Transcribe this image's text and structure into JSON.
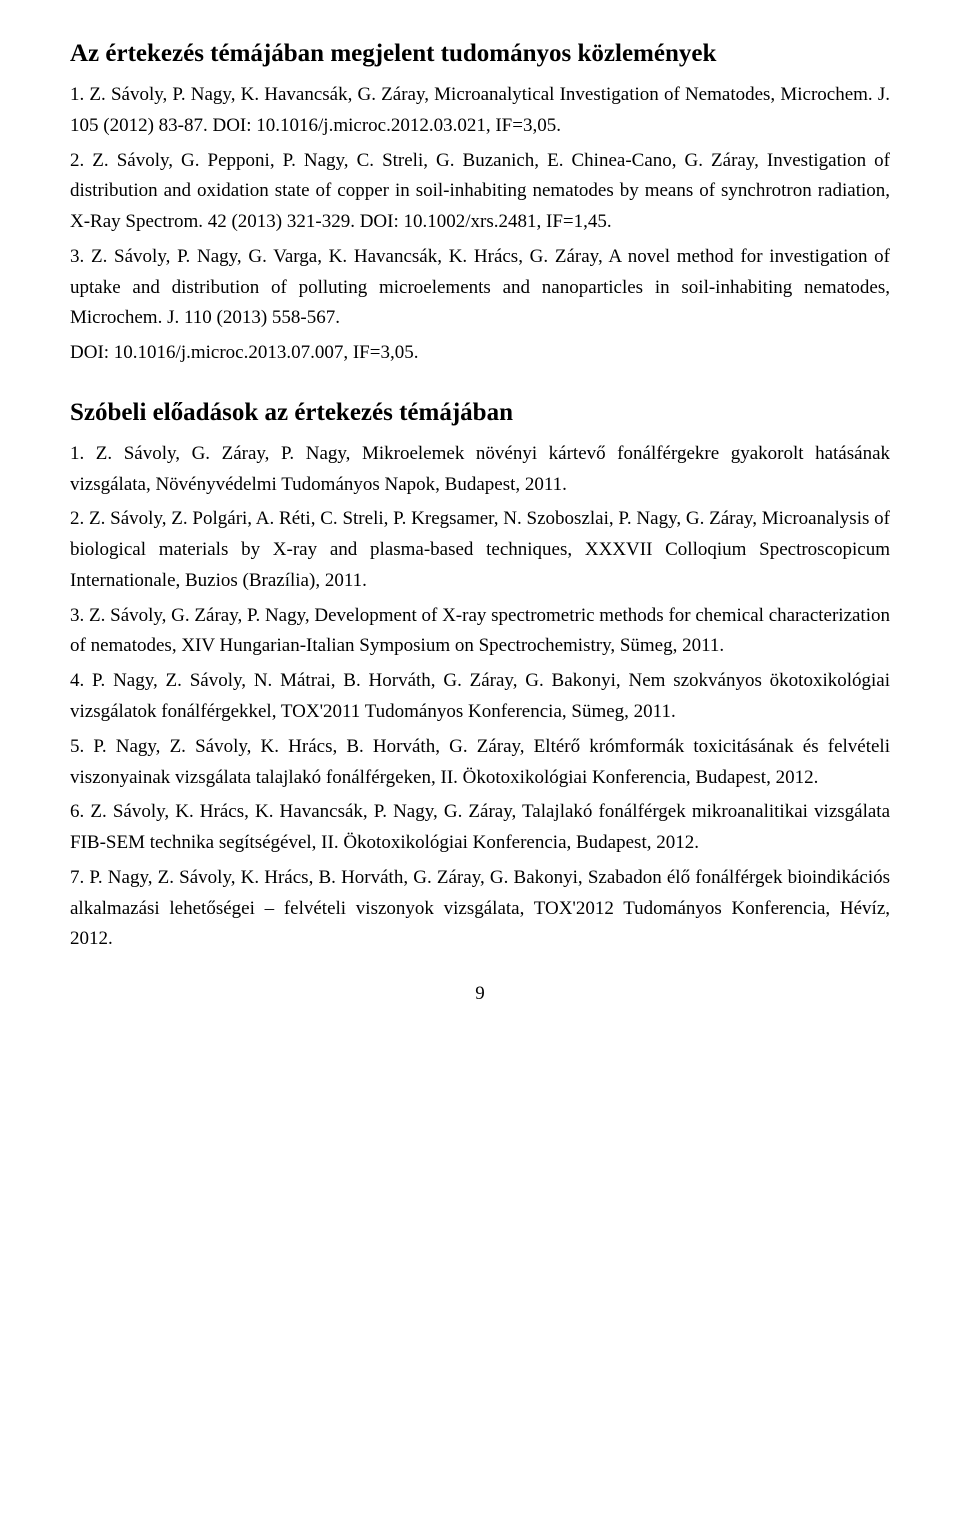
{
  "section1": {
    "title": "Az értekezés témájában megjelent tudományos közlemények",
    "entries": [
      "1. Z. Sávoly, P. Nagy, K. Havancsák, G. Záray, Microanalytical Investigation of Nematodes, Microchem. J. 105 (2012) 83-87. DOI: 10.1016/j.microc.2012.03.021, IF=3,05.",
      "2. Z. Sávoly, G. Pepponi, P. Nagy, C. Streli, G. Buzanich, E. Chinea-Cano, G. Záray, Investigation of distribution and oxidation state of copper in soil-inhabiting nematodes by means of synchrotron radiation, X-Ray Spectrom. 42 (2013) 321-329. DOI: 10.1002/xrs.2481, IF=1,45.",
      "3. Z. Sávoly, P. Nagy, G. Varga, K. Havancsák, K. Hrács, G. Záray, A novel method for investigation of uptake and distribution of polluting microelements and nanoparticles in soil-inhabiting nematodes, Microchem. J. 110 (2013) 558-567.",
      "DOI: 10.1016/j.microc.2013.07.007, IF=3,05."
    ]
  },
  "section2": {
    "title": "Szóbeli előadások az értekezés témájában",
    "entries": [
      "1. Z. Sávoly, G. Záray, P. Nagy, Mikroelemek növényi kártevő fonálférgekre gyakorolt hatásának vizsgálata, Növényvédelmi Tudományos Napok, Budapest, 2011.",
      "2. Z. Sávoly, Z. Polgári, A. Réti, C. Streli, P. Kregsamer, N. Szoboszlai, P. Nagy, G. Záray, Microanalysis of biological materials by X-ray and plasma-based techniques, XXXVII Colloqium Spectroscopicum Internationale, Buzios (Brazília), 2011.",
      "3. Z. Sávoly, G. Záray, P. Nagy, Development of X-ray spectrometric methods for chemical characterization of nematodes, XIV Hungarian-Italian Symposium on Spectrochemistry, Sümeg, 2011.",
      "4. P. Nagy, Z. Sávoly, N. Mátrai, B. Horváth, G. Záray, G. Bakonyi, Nem szokványos ökotoxikológiai vizsgálatok fonálférgekkel, TOX'2011 Tudományos Konferencia, Sümeg, 2011.",
      "5. P. Nagy, Z. Sávoly, K. Hrács, B. Horváth, G. Záray, Eltérő krómformák toxicitásának és felvételi viszonyainak vizsgálata talajlakó fonálférgeken, II. Ökotoxikológiai Konferencia, Budapest, 2012.",
      "6. Z. Sávoly, K. Hrács, K. Havancsák, P. Nagy, G. Záray, Talajlakó fonálférgek mikroanalitikai vizsgálata FIB-SEM technika segítségével, II. Ökotoxikológiai Konferencia, Budapest, 2012.",
      "7. P. Nagy, Z. Sávoly, K. Hrács, B. Horváth, G. Záray, G. Bakonyi, Szabadon élő fonálférgek bioindikációs alkalmazási lehetőségei – felvételi viszonyok vizsgálata, TOX'2012 Tudományos Konferencia, Hévíz, 2012."
    ]
  },
  "pageNumber": "9"
}
